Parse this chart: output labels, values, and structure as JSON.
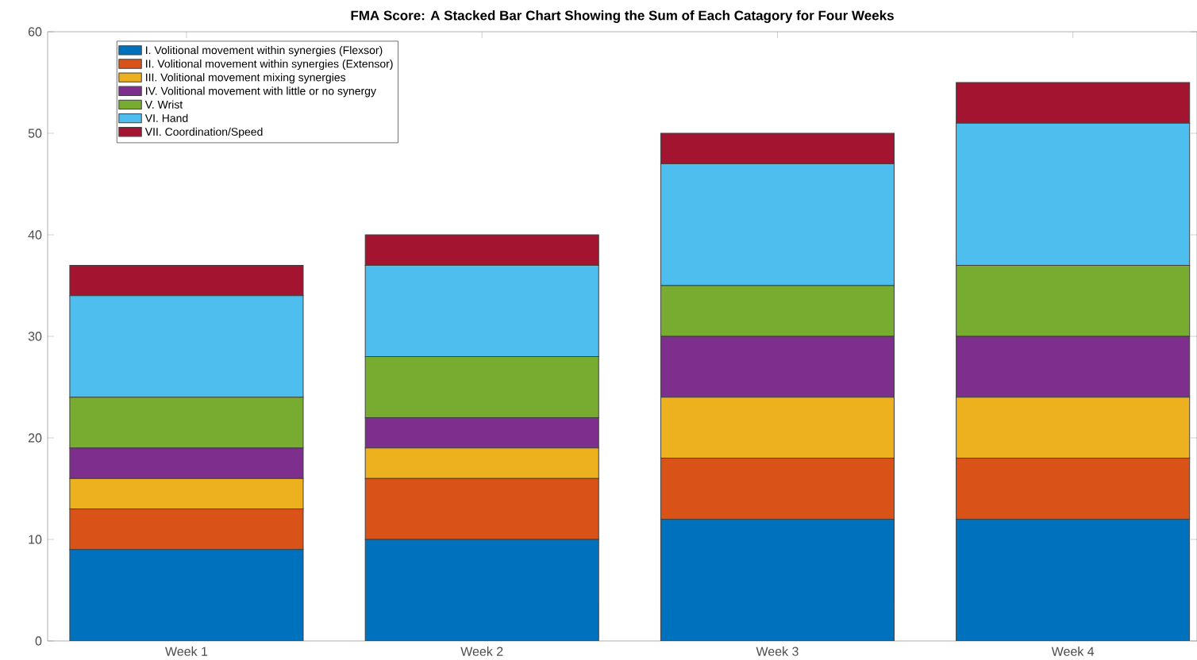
{
  "chart_data": {
    "type": "bar",
    "stacked": true,
    "title": "FMA Score: A Stacked Bar Chart Showing the Sum of Each Catagory for Four Weeks",
    "categories": [
      "Week 1",
      "Week 2",
      "Week 3",
      "Week 4"
    ],
    "series": [
      {
        "name": "I. Volitional movement within synergies (Flexsor)",
        "color": "#0072bd",
        "values": [
          9,
          10,
          12,
          12
        ]
      },
      {
        "name": "II. Volitional movement within synergies (Extensor)",
        "color": "#d95319",
        "values": [
          4,
          6,
          6,
          6
        ]
      },
      {
        "name": "III. Volitional movement mixing synergies",
        "color": "#edb120",
        "values": [
          3,
          3,
          6,
          6
        ]
      },
      {
        "name": "IV. Volitional movement with little or no synergy",
        "color": "#7e2f8e",
        "values": [
          3,
          3,
          6,
          6
        ]
      },
      {
        "name": "V. Wrist",
        "color": "#77ac30",
        "values": [
          5,
          6,
          5,
          7
        ]
      },
      {
        "name": "VI. Hand",
        "color": "#4dbeee",
        "values": [
          10,
          9,
          12,
          14
        ]
      },
      {
        "name": "VII. Coordination/Speed",
        "color": "#a2142f",
        "values": [
          3,
          3,
          3,
          4
        ]
      }
    ],
    "ylim": [
      0,
      60
    ],
    "yticks": [
      0,
      10,
      20,
      30,
      40,
      50,
      60
    ],
    "grid": false,
    "legend": "top left"
  }
}
